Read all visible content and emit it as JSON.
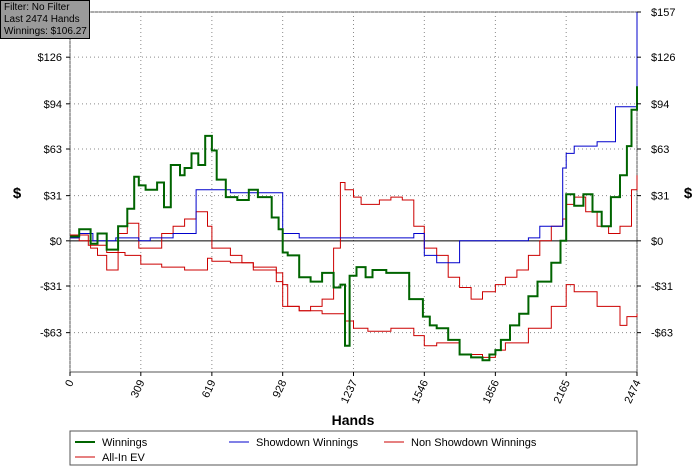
{
  "info_box": {
    "line1": "Filter: No Filter",
    "line2": "Last  2474 Hands",
    "line3": "Winnings: $106.27"
  },
  "chart_data": {
    "type": "line",
    "xlabel": "Hands",
    "ylabel": "$",
    "xlim": [
      0,
      2474
    ],
    "ylim": [
      -90,
      157
    ],
    "x_ticks": [
      0,
      309,
      619,
      928,
      1237,
      1546,
      1856,
      2165,
      2474
    ],
    "y_ticks": [
      {
        "v": 157,
        "label": "$157",
        "left": false
      },
      {
        "v": 126,
        "label": "$126",
        "left": true
      },
      {
        "v": 94,
        "label": "$94",
        "left": true
      },
      {
        "v": 63,
        "label": "$63",
        "left": true
      },
      {
        "v": 31,
        "label": "$31",
        "left": true
      },
      {
        "v": 0,
        "label": "$0",
        "left": true
      },
      {
        "v": -31,
        "label": "-$31",
        "left": true
      },
      {
        "v": -63,
        "label": "-$63",
        "left": true
      }
    ],
    "grid": true,
    "legend_position": "bottom",
    "series": [
      {
        "name": "Winnings",
        "color": "#006400",
        "x": [
          0,
          40,
          90,
          120,
          160,
          210,
          250,
          280,
          300,
          330,
          380,
          410,
          440,
          480,
          500,
          530,
          560,
          590,
          619,
          640,
          680,
          730,
          780,
          820,
          880,
          910,
          928,
          950,
          1000,
          1050,
          1100,
          1150,
          1180,
          1200,
          1220,
          1250,
          1290,
          1320,
          1380,
          1430,
          1480,
          1540,
          1570,
          1600,
          1650,
          1700,
          1750,
          1800,
          1830,
          1856,
          1880,
          1920,
          1960,
          2000,
          2040,
          2100,
          2140,
          2165,
          2200,
          2240,
          2280,
          2320,
          2360,
          2400,
          2430,
          2450,
          2474
        ],
        "y": [
          3,
          8,
          -2,
          5,
          -6,
          10,
          22,
          44,
          38,
          35,
          40,
          23,
          52,
          45,
          50,
          60,
          52,
          72,
          62,
          42,
          30,
          28,
          35,
          30,
          16,
          8,
          -8,
          -10,
          -25,
          -28,
          -22,
          -32,
          -30,
          -72,
          -24,
          -18,
          -25,
          -20,
          -22,
          -22,
          -40,
          -52,
          -58,
          -60,
          -68,
          -78,
          -80,
          -82,
          -78,
          -75,
          -68,
          -58,
          -50,
          -38,
          -28,
          -15,
          0,
          32,
          24,
          32,
          20,
          10,
          30,
          45,
          65,
          90,
          106
        ]
      },
      {
        "name": "Showdown Winnings",
        "color": "#0000cc",
        "x": [
          0,
          40,
          100,
          200,
          300,
          350,
          400,
          450,
          500,
          550,
          600,
          619,
          650,
          700,
          800,
          900,
          928,
          1000,
          1050,
          1100,
          1150,
          1180,
          1237,
          1300,
          1400,
          1450,
          1500,
          1546,
          1600,
          1700,
          1800,
          1856,
          1900,
          2000,
          2050,
          2100,
          2150,
          2165,
          2200,
          2250,
          2300,
          2340,
          2380,
          2420,
          2450,
          2474
        ],
        "y": [
          2,
          5,
          0,
          2,
          0,
          2,
          2,
          5,
          5,
          35,
          35,
          35,
          35,
          33,
          33,
          33,
          5,
          2,
          2,
          2,
          2,
          2,
          2,
          2,
          2,
          2,
          5,
          -10,
          -15,
          0,
          0,
          0,
          0,
          2,
          10,
          10,
          50,
          60,
          65,
          65,
          68,
          68,
          92,
          92,
          92,
          157
        ]
      },
      {
        "name": "Non Showdown Winnings",
        "color": "#cc0000",
        "x": [
          0,
          40,
          90,
          120,
          160,
          210,
          250,
          300,
          350,
          400,
          450,
          500,
          550,
          600,
          619,
          650,
          700,
          750,
          800,
          850,
          900,
          928,
          950,
          1000,
          1050,
          1100,
          1150,
          1180,
          1200,
          1237,
          1270,
          1300,
          1350,
          1400,
          1450,
          1500,
          1546,
          1600,
          1650,
          1700,
          1750,
          1800,
          1856,
          1900,
          1950,
          2000,
          2050,
          2100,
          2150,
          2165,
          2200,
          2250,
          2300,
          2350,
          2400,
          2450,
          2474
        ],
        "y": [
          2,
          0,
          -5,
          -10,
          -20,
          5,
          12,
          -5,
          -5,
          5,
          10,
          15,
          20,
          10,
          -5,
          -5,
          -10,
          -15,
          -18,
          -18,
          -22,
          -30,
          -45,
          -48,
          -45,
          -40,
          -5,
          40,
          35,
          30,
          25,
          25,
          28,
          30,
          28,
          10,
          -5,
          -10,
          -25,
          -32,
          -40,
          -35,
          -30,
          -25,
          -20,
          -10,
          0,
          10,
          15,
          25,
          30,
          20,
          10,
          5,
          10,
          35,
          45
        ]
      },
      {
        "name": "All-In EV",
        "color": "#cc0000",
        "x": [
          0,
          80,
          160,
          240,
          309,
          400,
          500,
          600,
          619,
          700,
          800,
          900,
          928,
          1000,
          1100,
          1200,
          1237,
          1300,
          1400,
          1500,
          1546,
          1600,
          1700,
          1800,
          1856,
          1900,
          2000,
          2100,
          2165,
          2200,
          2300,
          2400,
          2430,
          2474
        ],
        "y": [
          4,
          -3,
          -8,
          -10,
          -16,
          -18,
          -20,
          -12,
          -14,
          -15,
          -20,
          -28,
          -45,
          -48,
          -50,
          -55,
          -60,
          -62,
          -60,
          -65,
          -72,
          -70,
          -78,
          -80,
          -75,
          -70,
          -60,
          -45,
          -30,
          -35,
          -45,
          -58,
          -52,
          -50
        ]
      }
    ]
  }
}
